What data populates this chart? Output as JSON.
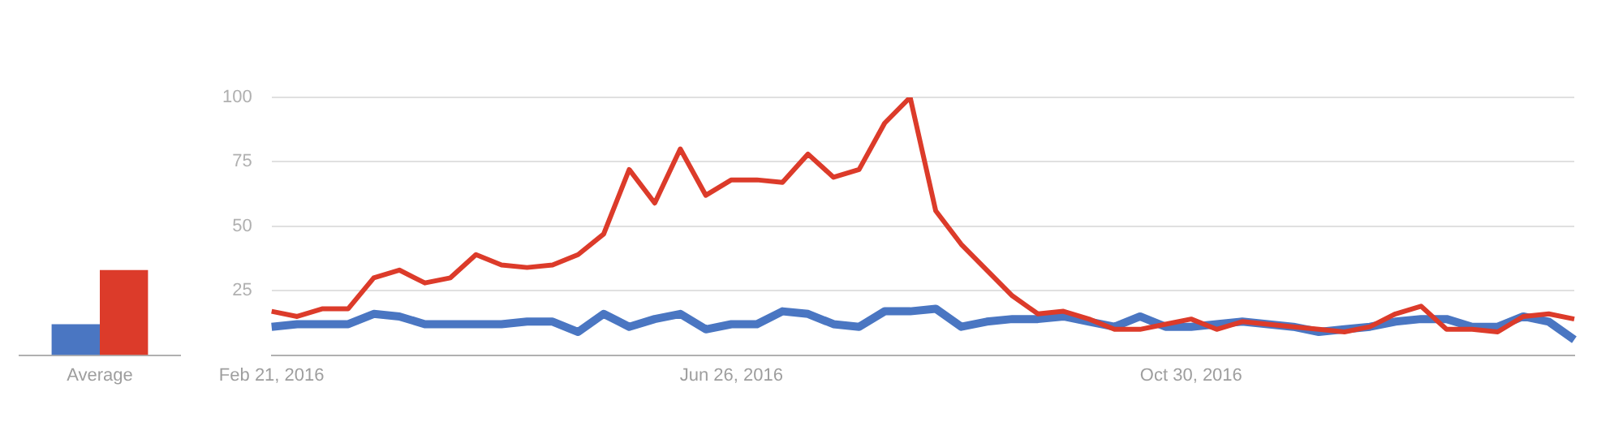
{
  "chart_data": [
    {
      "type": "bar",
      "categories": [
        "Average"
      ],
      "series": [
        {
          "color": "#4a76c2",
          "values": [
            12
          ]
        },
        {
          "color": "#dc3b2a",
          "values": [
            33
          ]
        }
      ],
      "ylim": [
        0,
        100
      ],
      "tick_labels": "x",
      "grid": false,
      "legend": false
    },
    {
      "type": "line",
      "categories": [
        "Feb 21, 2016",
        null,
        null,
        null,
        null,
        null,
        null,
        null,
        null,
        null,
        null,
        null,
        null,
        null,
        null,
        null,
        null,
        null,
        "Jun 26, 2016",
        null,
        null,
        null,
        null,
        null,
        null,
        null,
        null,
        null,
        null,
        null,
        null,
        null,
        null,
        null,
        null,
        null,
        "Oct 30, 2016",
        null,
        null,
        null,
        null,
        null,
        null,
        null,
        null,
        null,
        null,
        null,
        null,
        null,
        null,
        null
      ],
      "series": [
        {
          "color": "#4a76c2",
          "values": [
            11,
            12,
            12,
            12,
            16,
            15,
            12,
            12,
            12,
            12,
            13,
            13,
            9,
            16,
            11,
            14,
            16,
            10,
            12,
            12,
            17,
            16,
            12,
            11,
            17,
            17,
            18,
            11,
            13,
            14,
            14,
            15,
            13,
            11,
            15,
            11,
            11,
            12,
            13,
            12,
            11,
            9,
            10,
            11,
            13,
            14,
            14,
            11,
            11,
            15,
            13,
            6
          ]
        },
        {
          "color": "#dc3b2a",
          "values": [
            17,
            15,
            18,
            18,
            30,
            33,
            28,
            30,
            39,
            35,
            34,
            35,
            39,
            47,
            72,
            59,
            80,
            62,
            68,
            68,
            67,
            78,
            69,
            72,
            90,
            100,
            56,
            43,
            33,
            23,
            16,
            17,
            14,
            10,
            10,
            12,
            14,
            10,
            13,
            12,
            11,
            10,
            9,
            11,
            16,
            19,
            10,
            10,
            9,
            15,
            16,
            14
          ]
        }
      ],
      "ylim": [
        0,
        100
      ],
      "yticks": [
        25,
        50,
        75,
        100
      ],
      "grid": "y",
      "legend": false,
      "marker": "none",
      "line_style": "solid"
    }
  ]
}
